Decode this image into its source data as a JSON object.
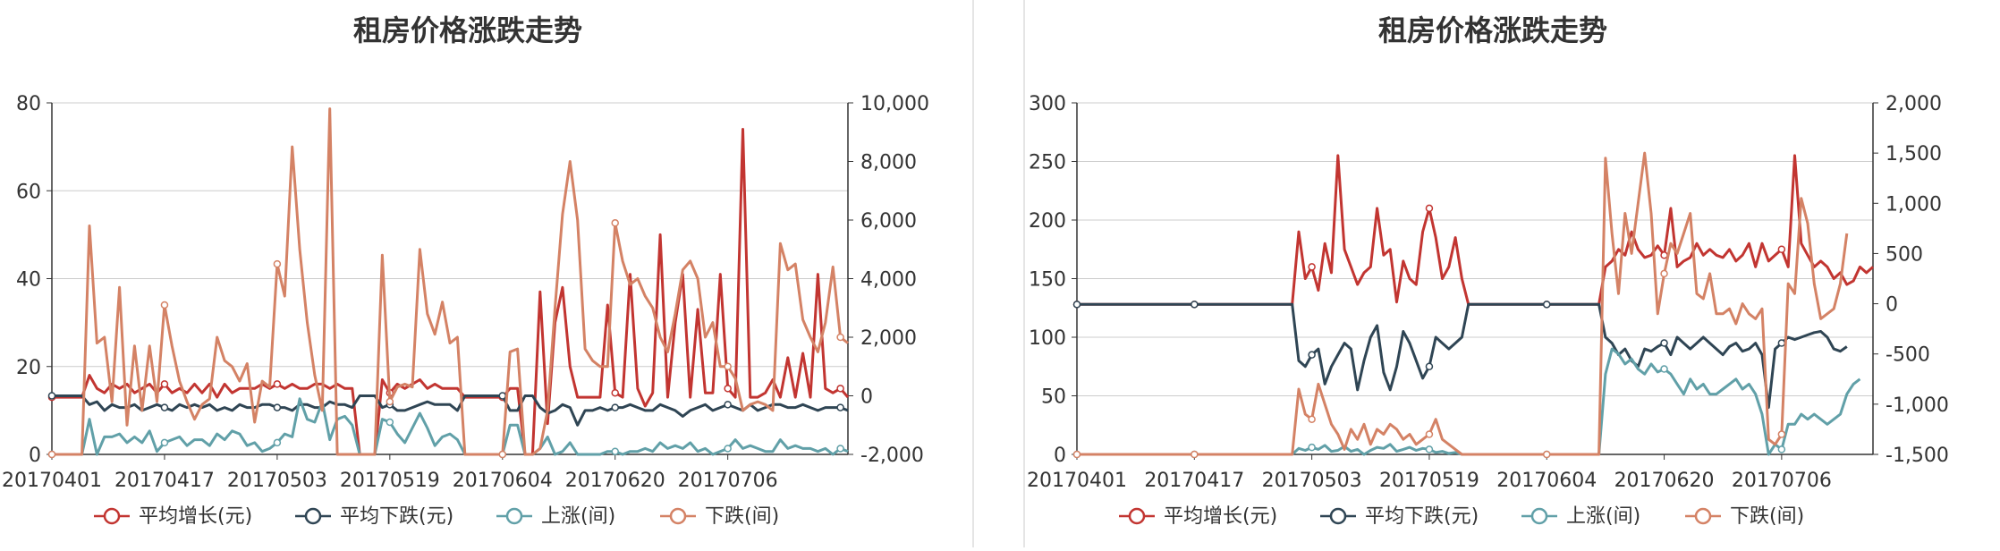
{
  "colors": {
    "avg_increase": "#c23531",
    "avg_decrease": "#2f4554",
    "up_count": "#61a0a8",
    "down_count": "#d48265",
    "axis": "#333333",
    "grid": "#cccccc"
  },
  "chart_data": [
    {
      "type": "line",
      "title": "租房价格涨跌走势",
      "x_ticks": [
        "20170401",
        "20170417",
        "20170503",
        "20170519",
        "20170604",
        "20170620",
        "20170706"
      ],
      "y_left": {
        "min": 0,
        "max": 80,
        "ticks": [
          "0",
          "20",
          "40",
          "60",
          "80"
        ]
      },
      "y_right": {
        "min": -2000,
        "max": 10000,
        "ticks": [
          "-2,000",
          "0",
          "2,000",
          "4,000",
          "6,000",
          "8,000",
          "10,000"
        ]
      },
      "legend": [
        "平均增长(元)",
        "平均下跌(元)",
        "上涨(间)",
        "下跌(间)"
      ],
      "legend_position": "bottom",
      "grid": true,
      "series": [
        {
          "name": "平均增长(元)",
          "axis": "left",
          "values": [
            13,
            13,
            13,
            13,
            13,
            18,
            15,
            14,
            16,
            15,
            16,
            14,
            15,
            16,
            14,
            16,
            14,
            15,
            14,
            16,
            14,
            16,
            13,
            16,
            14,
            15,
            15,
            15,
            16,
            15,
            16,
            15,
            16,
            15,
            15,
            16,
            16,
            15,
            16,
            15,
            15,
            0,
            0,
            0,
            17,
            14,
            16,
            15,
            16,
            17,
            15,
            16,
            15,
            15,
            15,
            13,
            13,
            13,
            13,
            13,
            13,
            15,
            15,
            0,
            0,
            37,
            7,
            30,
            38,
            20,
            13,
            13,
            13,
            13,
            34,
            14,
            13,
            41,
            15,
            11,
            14,
            50,
            13,
            30,
            41,
            13,
            33,
            14,
            14,
            41,
            15,
            13,
            74,
            13,
            13,
            14,
            17,
            13,
            22,
            13,
            23,
            13,
            41,
            15,
            14,
            15,
            13
          ]
        },
        {
          "name": "平均下跌(元)",
          "axis": "right",
          "values": [
            0,
            0,
            0,
            0,
            0,
            -300,
            -200,
            -500,
            -300,
            -400,
            -400,
            -300,
            -500,
            -400,
            -300,
            -400,
            -500,
            -300,
            -400,
            -300,
            -400,
            -300,
            -500,
            -400,
            -500,
            -300,
            -400,
            -400,
            -300,
            -300,
            -400,
            -400,
            -500,
            -300,
            -300,
            -400,
            -400,
            -200,
            -300,
            -300,
            -400,
            0,
            0,
            0,
            -400,
            -300,
            -500,
            -500,
            -400,
            -300,
            -200,
            -300,
            -300,
            -300,
            -500,
            0,
            0,
            0,
            0,
            0,
            0,
            -500,
            -500,
            0,
            0,
            -400,
            -600,
            -500,
            -300,
            -400,
            -1000,
            -500,
            -500,
            -400,
            -500,
            -400,
            -400,
            -300,
            -400,
            -500,
            -500,
            -300,
            -400,
            -500,
            -700,
            -500,
            -400,
            -300,
            -500,
            -400,
            -300,
            -400,
            -500,
            -300,
            -500,
            -400,
            -300,
            -300,
            -400,
            -400,
            -300,
            -400,
            -500,
            -400,
            -400,
            -400,
            -500
          ]
        },
        {
          "name": "上涨(间)",
          "axis": "right",
          "values": [
            -2000,
            -2000,
            -2000,
            -2000,
            -2000,
            -800,
            -2000,
            -1400,
            -1400,
            -1300,
            -1600,
            -1400,
            -1600,
            -1200,
            -1900,
            -1600,
            -1500,
            -1400,
            -1700,
            -1500,
            -1500,
            -1700,
            -1300,
            -1500,
            -1200,
            -1300,
            -1700,
            -1600,
            -1900,
            -1800,
            -1600,
            -1300,
            -1400,
            -100,
            -800,
            -900,
            -200,
            -1500,
            -800,
            -700,
            -1000,
            -2000,
            -2000,
            -2000,
            -800,
            -900,
            -1300,
            -1600,
            -1100,
            -600,
            -1100,
            -1700,
            -1400,
            -1300,
            -1500,
            -2000,
            -2000,
            -2000,
            -2000,
            -2000,
            -2000,
            -1000,
            -1000,
            -2000,
            -2000,
            -1800,
            -1400,
            -2000,
            -1900,
            -1600,
            -2000,
            -2000,
            -2000,
            -2000,
            -1900,
            -1900,
            -2000,
            -1900,
            -1900,
            -1800,
            -1900,
            -1600,
            -1800,
            -1700,
            -1800,
            -1600,
            -1900,
            -1800,
            -2000,
            -1900,
            -1800,
            -1500,
            -1800,
            -1700,
            -1800,
            -1900,
            -1900,
            -1500,
            -1800,
            -1700,
            -1800,
            -1800,
            -1900,
            -1800,
            -2000,
            -1800,
            -1900
          ]
        },
        {
          "name": "下跌(间)",
          "axis": "right",
          "values": [
            -2000,
            -2000,
            -2000,
            -2000,
            -2000,
            5800,
            1800,
            2000,
            -200,
            3700,
            -1000,
            1700,
            -500,
            1700,
            -200,
            3100,
            1700,
            500,
            -200,
            -800,
            -300,
            -100,
            2000,
            1200,
            1000,
            500,
            1100,
            -900,
            500,
            300,
            4500,
            3400,
            8500,
            5000,
            2500,
            700,
            -500,
            9800,
            -2000,
            -2000,
            -2000,
            -2000,
            -2000,
            -2000,
            4800,
            -200,
            300,
            400,
            300,
            5000,
            2800,
            2100,
            3200,
            1800,
            2000,
            -2000,
            -2000,
            -2000,
            -2000,
            -2000,
            -2000,
            1500,
            1600,
            -2000,
            -2000,
            -1800,
            -500,
            3000,
            6200,
            8000,
            6000,
            1600,
            1200,
            1000,
            1000,
            5900,
            4600,
            3800,
            4000,
            3400,
            3000,
            2000,
            1500,
            2800,
            4300,
            4600,
            4000,
            2000,
            2500,
            1000,
            1000,
            600,
            -500,
            -300,
            -200,
            -300,
            -500,
            5200,
            4300,
            4500,
            2600,
            2000,
            1500,
            2500,
            4400,
            2000,
            1800
          ]
        }
      ]
    },
    {
      "type": "line",
      "title": "租房价格涨跌走势",
      "x_ticks": [
        "20170401",
        "20170417",
        "20170503",
        "20170519",
        "20170604",
        "20170620",
        "20170706"
      ],
      "y_left": {
        "min": 0,
        "max": 300,
        "ticks": [
          "0",
          "50",
          "100",
          "150",
          "200",
          "250",
          "300"
        ]
      },
      "y_right": {
        "min": -1500,
        "max": 2000,
        "ticks": [
          "-1,500",
          "-1,000",
          "-500",
          "0",
          "500",
          "1,000",
          "1,500",
          "2,000"
        ]
      },
      "legend": [
        "平均增长(元)",
        "平均下跌(元)",
        "上涨(间)",
        "下跌(间)"
      ],
      "legend_position": "bottom",
      "grid": true,
      "series": [
        {
          "name": "平均增长(元)",
          "axis": "left",
          "values": [
            128,
            128,
            128,
            128,
            128,
            128,
            128,
            128,
            128,
            128,
            128,
            128,
            128,
            128,
            128,
            128,
            128,
            128,
            128,
            128,
            128,
            128,
            128,
            128,
            128,
            128,
            128,
            128,
            128,
            128,
            128,
            128,
            128,
            128,
            190,
            150,
            160,
            140,
            180,
            155,
            255,
            175,
            160,
            145,
            155,
            160,
            210,
            170,
            175,
            130,
            165,
            150,
            145,
            190,
            210,
            185,
            150,
            160,
            185,
            150,
            128,
            128,
            128,
            128,
            128,
            128,
            128,
            128,
            128,
            128,
            128,
            128,
            128,
            128,
            128,
            128,
            128,
            128,
            128,
            128,
            128,
            160,
            165,
            175,
            170,
            190,
            175,
            168,
            170,
            178,
            170,
            210,
            160,
            165,
            168,
            180,
            170,
            175,
            170,
            168,
            175,
            165,
            170,
            180,
            160,
            180,
            165,
            170,
            175,
            160,
            255,
            180,
            170,
            160,
            165,
            160,
            150,
            155,
            145,
            148,
            160,
            155,
            160
          ]
        },
        {
          "name": "平均下跌(元)",
          "axis": "left",
          "values": [
            128,
            128,
            128,
            128,
            128,
            128,
            128,
            128,
            128,
            128,
            128,
            128,
            128,
            128,
            128,
            128,
            128,
            128,
            128,
            128,
            128,
            128,
            128,
            128,
            128,
            128,
            128,
            128,
            128,
            128,
            128,
            128,
            128,
            128,
            80,
            75,
            85,
            90,
            60,
            75,
            85,
            95,
            90,
            55,
            80,
            100,
            110,
            70,
            55,
            75,
            105,
            95,
            80,
            65,
            75,
            100,
            95,
            90,
            95,
            100,
            128,
            128,
            128,
            128,
            128,
            128,
            128,
            128,
            128,
            128,
            128,
            128,
            128,
            128,
            128,
            128,
            128,
            128,
            128,
            128,
            128,
            100,
            95,
            85,
            90,
            80,
            75,
            90,
            88,
            92,
            95,
            85,
            100,
            95,
            90,
            95,
            100,
            95,
            90,
            85,
            92,
            95,
            88,
            90,
            95,
            85,
            40,
            90,
            95,
            100,
            98,
            100,
            102,
            104,
            105,
            100,
            90,
            88,
            92
          ]
        },
        {
          "name": "上涨(间)",
          "axis": "right",
          "values": [
            -1500,
            -1500,
            -1500,
            -1500,
            -1500,
            -1500,
            -1500,
            -1500,
            -1500,
            -1500,
            -1500,
            -1500,
            -1500,
            -1500,
            -1500,
            -1500,
            -1500,
            -1500,
            -1500,
            -1500,
            -1500,
            -1500,
            -1500,
            -1500,
            -1500,
            -1500,
            -1500,
            -1500,
            -1500,
            -1500,
            -1500,
            -1500,
            -1500,
            -1500,
            -1440,
            -1460,
            -1430,
            -1450,
            -1410,
            -1470,
            -1460,
            -1420,
            -1470,
            -1450,
            -1500,
            -1460,
            -1430,
            -1440,
            -1400,
            -1470,
            -1450,
            -1430,
            -1460,
            -1440,
            -1450,
            -1480,
            -1470,
            -1490,
            -1480,
            -1500,
            -1500,
            -1500,
            -1500,
            -1500,
            -1500,
            -1500,
            -1500,
            -1500,
            -1500,
            -1500,
            -1500,
            -1500,
            -1500,
            -1500,
            -1500,
            -1500,
            -1500,
            -1500,
            -1500,
            -1500,
            -1500,
            -700,
            -450,
            -500,
            -600,
            -550,
            -650,
            -700,
            -600,
            -680,
            -650,
            -700,
            -800,
            -900,
            -750,
            -850,
            -800,
            -900,
            -900,
            -850,
            -800,
            -750,
            -850,
            -800,
            -900,
            -1100,
            -1500,
            -1400,
            -1450,
            -1200,
            -1200,
            -1100,
            -1150,
            -1100,
            -1150,
            -1200,
            -1150,
            -1100,
            -900,
            -800,
            -750
          ]
        },
        {
          "name": "下跌(间)",
          "axis": "right",
          "values": [
            -1500,
            -1500,
            -1500,
            -1500,
            -1500,
            -1500,
            -1500,
            -1500,
            -1500,
            -1500,
            -1500,
            -1500,
            -1500,
            -1500,
            -1500,
            -1500,
            -1500,
            -1500,
            -1500,
            -1500,
            -1500,
            -1500,
            -1500,
            -1500,
            -1500,
            -1500,
            -1500,
            -1500,
            -1500,
            -1500,
            -1500,
            -1500,
            -1500,
            -1500,
            -850,
            -1100,
            -1150,
            -800,
            -1000,
            -1200,
            -1300,
            -1450,
            -1250,
            -1350,
            -1200,
            -1400,
            -1250,
            -1300,
            -1200,
            -1250,
            -1350,
            -1300,
            -1400,
            -1350,
            -1300,
            -1150,
            -1350,
            -1400,
            -1450,
            -1500,
            -1500,
            -1500,
            -1500,
            -1500,
            -1500,
            -1500,
            -1500,
            -1500,
            -1500,
            -1500,
            -1500,
            -1500,
            -1500,
            -1500,
            -1500,
            -1500,
            -1500,
            -1500,
            -1500,
            -1500,
            -1500,
            1450,
            700,
            100,
            900,
            500,
            1000,
            1500,
            900,
            -100,
            300,
            600,
            500,
            700,
            900,
            100,
            50,
            300,
            -100,
            -100,
            -50,
            -200,
            0,
            -100,
            -150,
            -50,
            -1350,
            -1400,
            -1300,
            200,
            100,
            1050,
            800,
            200,
            -150,
            -100,
            -50,
            200,
            700
          ]
        }
      ]
    }
  ]
}
